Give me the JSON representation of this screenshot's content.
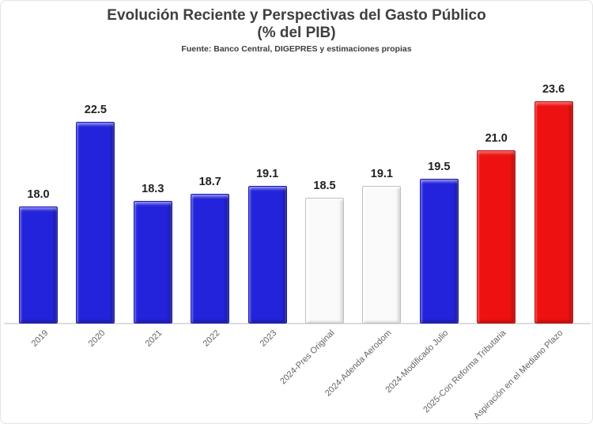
{
  "header": {
    "title": "Evolución Reciente y Perspectivas del Gasto Público",
    "subtitle": "(% del PIB)",
    "source": "Fuente: Banco Central, DIGEPRES y estimaciones propias"
  },
  "chart_data": {
    "type": "bar",
    "title": "Evolución Reciente y Perspectivas del Gasto Público (% del PIB)",
    "categories": [
      "2019",
      "2020",
      "2021",
      "2022",
      "2023",
      "2024-Pres Original",
      "2024-Adenda Aerodom",
      "2024-Modificado Julio",
      "2025-Con Reforma Tributaria",
      "Aspiración en el Mediano Plazo"
    ],
    "values": [
      18.0,
      22.5,
      18.3,
      18.7,
      19.1,
      18.5,
      19.1,
      19.5,
      21.0,
      23.6
    ],
    "data_labels": [
      "18.0",
      "22.5",
      "18.3",
      "18.7",
      "19.1",
      "18.5",
      "19.1",
      "19.5",
      "21.0",
      "23.6"
    ],
    "bar_color_keys": [
      "blue",
      "blue",
      "blue",
      "blue",
      "blue",
      "white",
      "white",
      "blue",
      "red",
      "red"
    ],
    "colors": {
      "blue": "#2323DB",
      "white": "#FAFAFA",
      "red": "#EE1111"
    },
    "xlabel": "",
    "ylabel": "",
    "ylim": [
      11.8,
      25.2
    ],
    "grid": false,
    "legend": "none",
    "tick_label_rotation_deg": 45,
    "axis_line_color": "#dcdcdc"
  }
}
